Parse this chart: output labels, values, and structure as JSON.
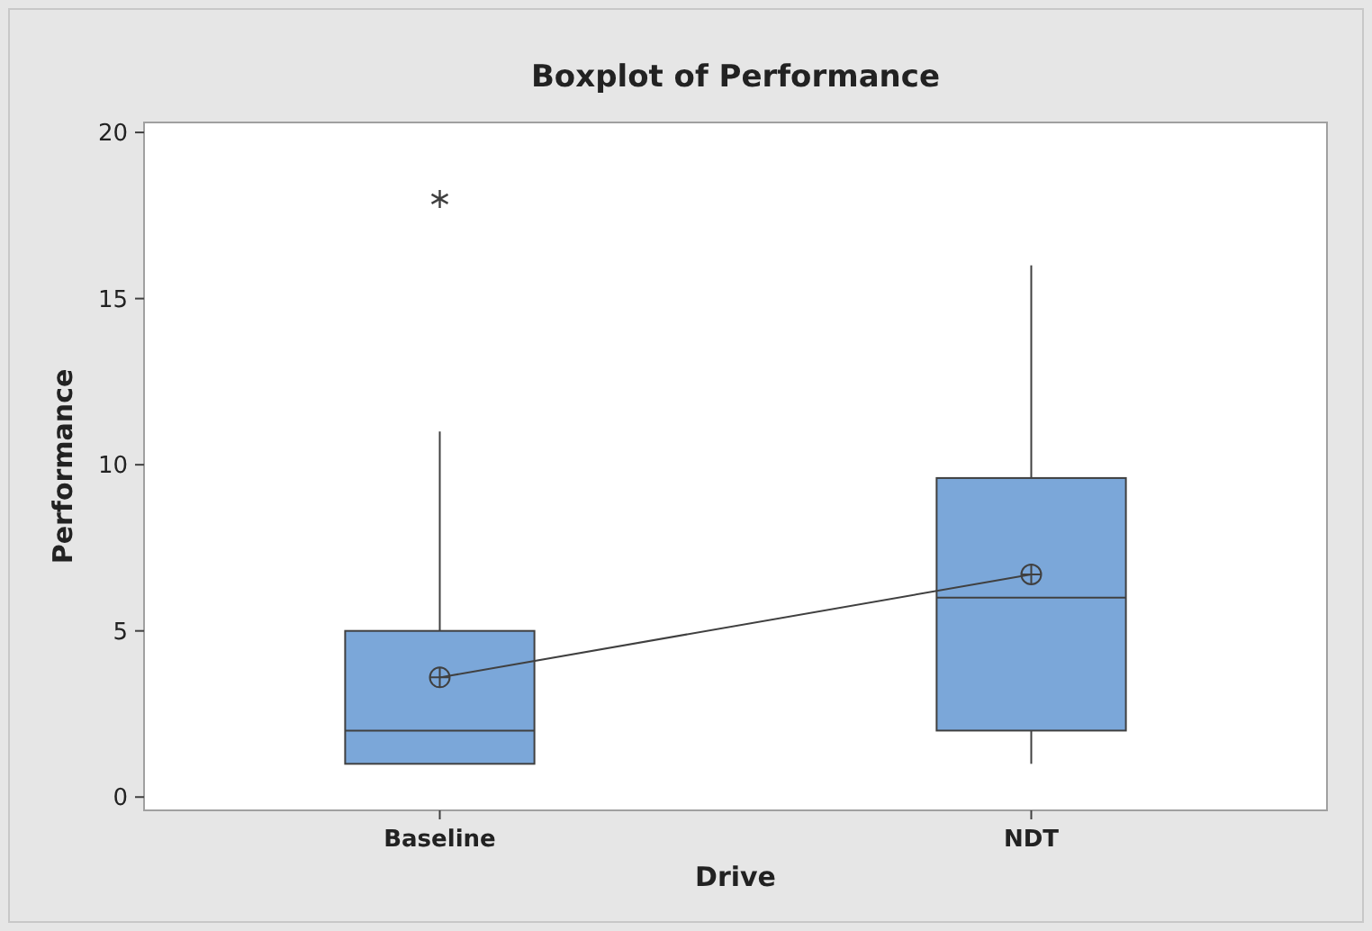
{
  "chart_data": {
    "type": "box",
    "title": "Boxplot of Performance",
    "xlabel": "Drive",
    "ylabel": "Performance",
    "categories": [
      "Baseline",
      "NDT"
    ],
    "ylim": [
      -0.4,
      20.3
    ],
    "yticks": [
      0,
      5,
      10,
      15,
      20
    ],
    "grid": false,
    "series": [
      {
        "color": "#7ba7d9",
        "boxes": [
          {
            "low": 1,
            "q1": 1,
            "median": 2,
            "q3": 5,
            "high": 11,
            "outliers": [
              18
            ]
          },
          {
            "low": 1,
            "q1": 2,
            "median": 6,
            "q3": 9.6,
            "high": 16
          }
        ]
      },
      {
        "type": "line",
        "color": "#404040",
        "marker": "circle",
        "values": [
          3.6,
          6.7
        ]
      }
    ]
  }
}
